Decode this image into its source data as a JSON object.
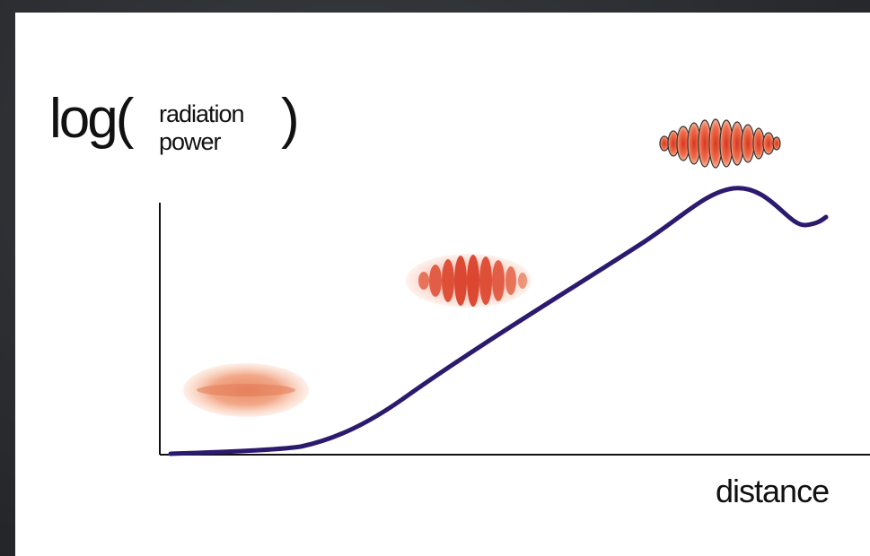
{
  "diagram": {
    "y_axis_label": {
      "prefix": "log(",
      "line1": "radiation",
      "line2": "power",
      "suffix": ")"
    },
    "x_axis_label": "distance"
  },
  "colors": {
    "curve": "#2b1a6e",
    "axis": "#111111",
    "bunch_pale": "#f0a07a",
    "bunch_medium": "#e8583c",
    "bunch_strong": "#d93a22"
  }
}
